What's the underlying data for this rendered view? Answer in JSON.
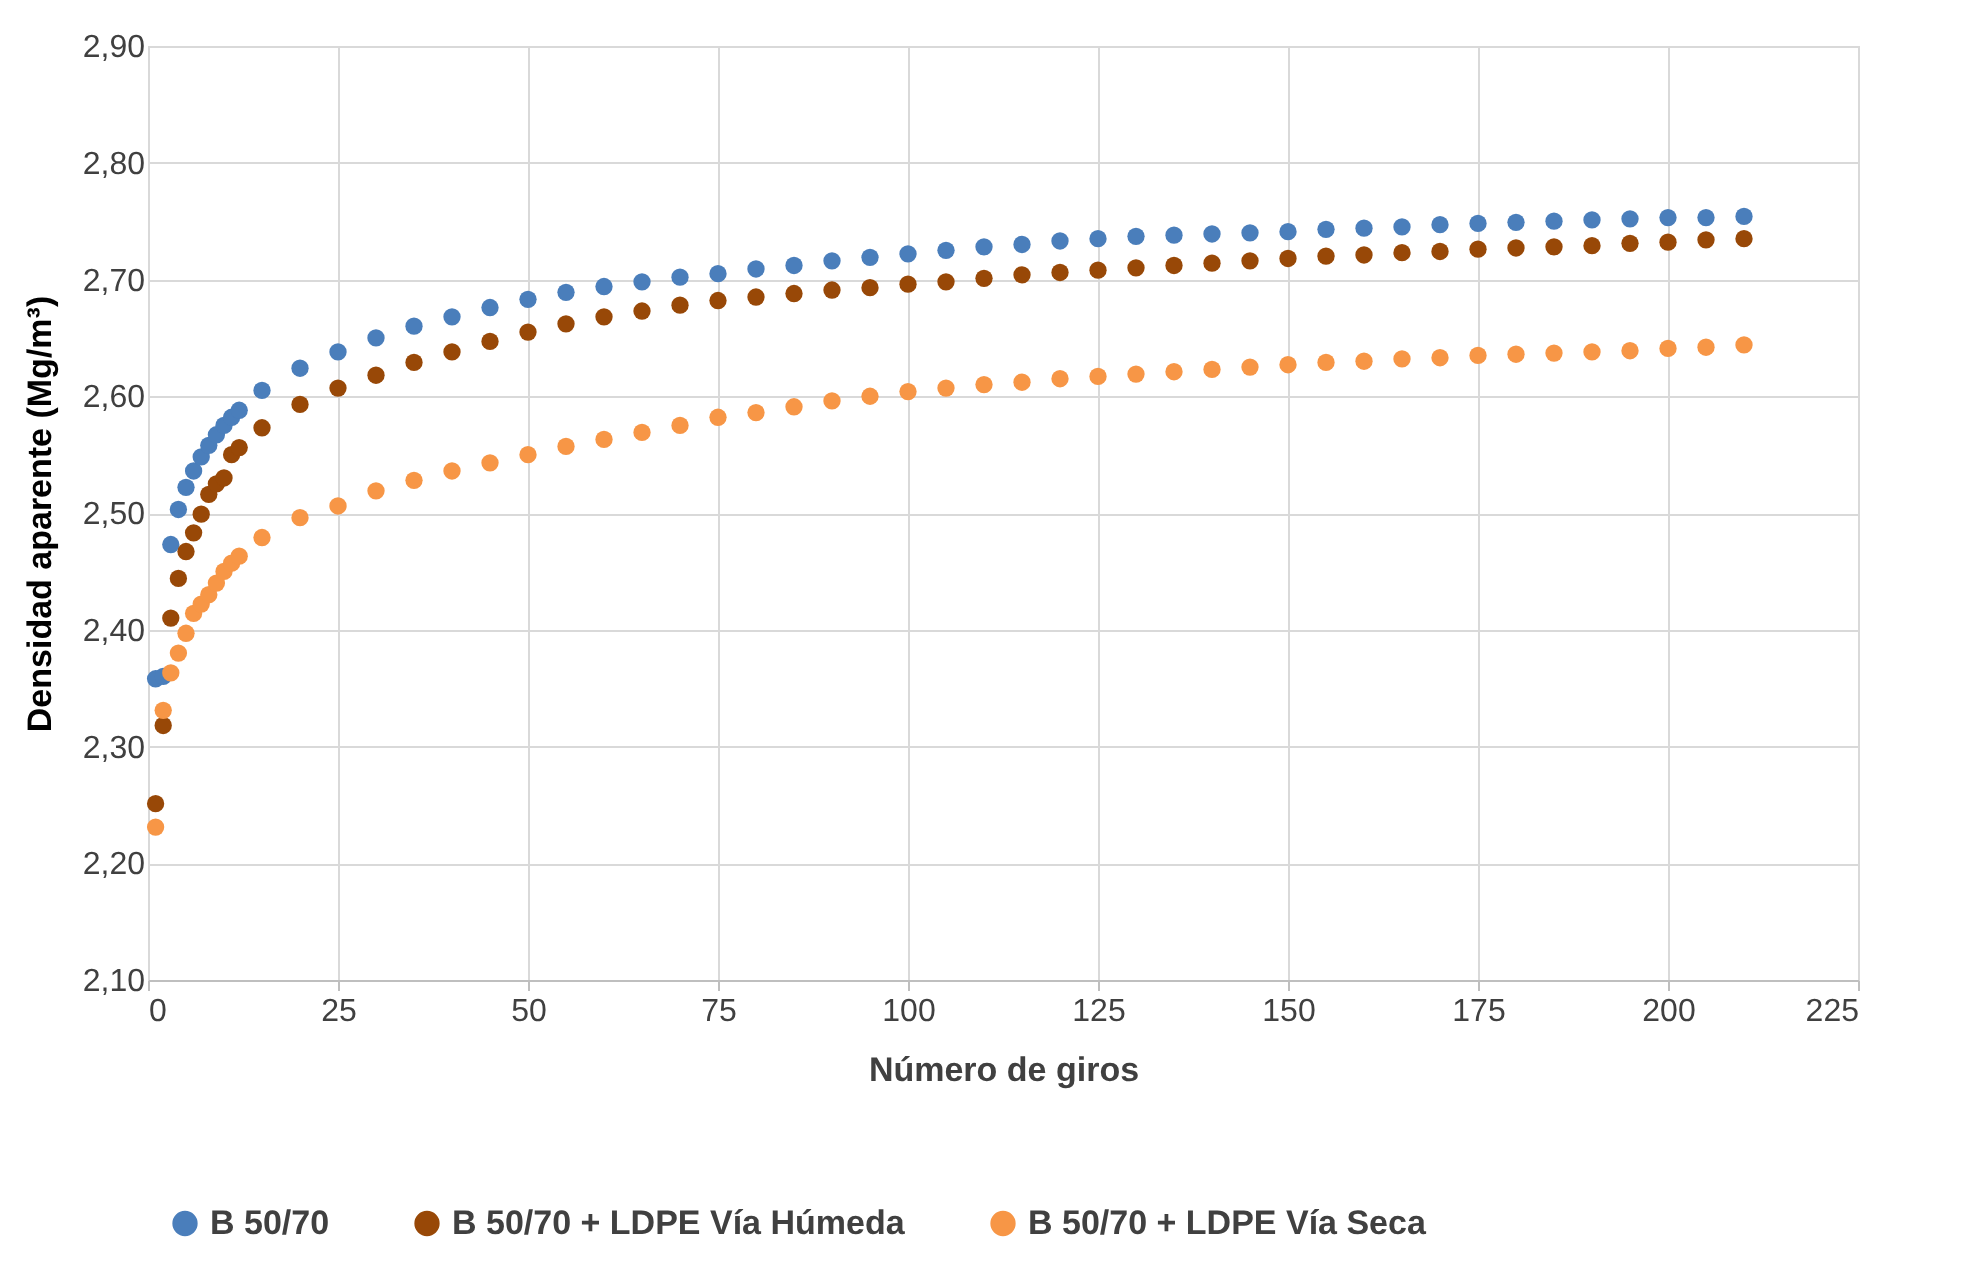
{
  "chart_data": {
    "type": "scatter",
    "xlabel": "Número de giros",
    "ylabel": "Densidad aparente (Mg/m³)",
    "x": [
      1,
      2,
      3,
      4,
      5,
      6,
      7,
      8,
      9,
      10,
      11,
      12,
      15,
      20,
      25,
      30,
      35,
      40,
      45,
      50,
      55,
      60,
      65,
      70,
      75,
      80,
      85,
      90,
      95,
      100,
      105,
      110,
      115,
      120,
      125,
      130,
      135,
      140,
      145,
      150,
      155,
      160,
      165,
      170,
      175,
      180,
      185,
      190,
      195,
      200,
      205,
      210
    ],
    "series": [
      {
        "name": "B 50/70",
        "color": "#4a7ebb",
        "values": [
          2.358,
          2.36,
          2.473,
          2.503,
          2.522,
          2.536,
          2.548,
          2.558,
          2.567,
          2.575,
          2.582,
          2.588,
          2.605,
          2.624,
          2.638,
          2.65,
          2.66,
          2.668,
          2.676,
          2.683,
          2.689,
          2.694,
          2.698,
          2.702,
          2.705,
          2.709,
          2.712,
          2.716,
          2.719,
          2.722,
          2.725,
          2.728,
          2.73,
          2.733,
          2.735,
          2.737,
          2.738,
          2.739,
          2.74,
          2.741,
          2.743,
          2.744,
          2.745,
          2.747,
          2.748,
          2.749,
          2.75,
          2.751,
          2.752,
          2.753,
          2.753,
          2.754
        ]
      },
      {
        "name": "B 50/70 + LDPE Vía Húmeda",
        "color": "#984807",
        "values": [
          2.251,
          2.318,
          2.41,
          2.444,
          2.467,
          2.483,
          2.499,
          2.516,
          2.525,
          2.53,
          2.55,
          2.556,
          2.573,
          2.593,
          2.607,
          2.618,
          2.629,
          2.638,
          2.647,
          2.655,
          2.662,
          2.668,
          2.673,
          2.678,
          2.682,
          2.685,
          2.688,
          2.691,
          2.693,
          2.696,
          2.698,
          2.701,
          2.704,
          2.706,
          2.708,
          2.71,
          2.712,
          2.714,
          2.716,
          2.718,
          2.72,
          2.721,
          2.723,
          2.724,
          2.726,
          2.727,
          2.728,
          2.729,
          2.731,
          2.732,
          2.734,
          2.735
        ]
      },
      {
        "name": "B 50/70 + LDPE Vía Seca",
        "color": "#f79646",
        "values": [
          2.231,
          2.331,
          2.363,
          2.38,
          2.397,
          2.414,
          2.422,
          2.43,
          2.44,
          2.45,
          2.457,
          2.463,
          2.479,
          2.496,
          2.506,
          2.519,
          2.528,
          2.536,
          2.543,
          2.55,
          2.557,
          2.563,
          2.569,
          2.575,
          2.582,
          2.586,
          2.591,
          2.596,
          2.6,
          2.604,
          2.607,
          2.61,
          2.612,
          2.615,
          2.617,
          2.619,
          2.621,
          2.623,
          2.625,
          2.627,
          2.629,
          2.63,
          2.632,
          2.633,
          2.635,
          2.636,
          2.637,
          2.638,
          2.639,
          2.641,
          2.642,
          2.644
        ]
      }
    ],
    "xlim": [
      0,
      225
    ],
    "xticks": [
      0,
      25,
      50,
      75,
      100,
      125,
      150,
      175,
      200,
      225
    ],
    "ylim": [
      2.1,
      2.9
    ],
    "yticks": [
      {
        "value": 2.1,
        "label": "2,10"
      },
      {
        "value": 2.2,
        "label": "2,20"
      },
      {
        "value": 2.3,
        "label": "2,30"
      },
      {
        "value": 2.4,
        "label": "2,40"
      },
      {
        "value": 2.5,
        "label": "2,50"
      },
      {
        "value": 2.6,
        "label": "2,60"
      },
      {
        "value": 2.7,
        "label": "2,70"
      },
      {
        "value": 2.8,
        "label": "2,80"
      },
      {
        "value": 2.9,
        "label": "2,90"
      }
    ],
    "grid": true,
    "legend": "bottom",
    "marker": "circle"
  }
}
